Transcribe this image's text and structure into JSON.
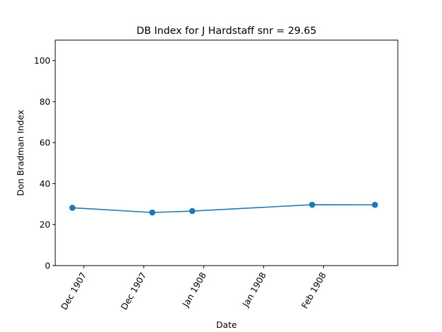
{
  "chart_data": {
    "type": "line",
    "title": "DB Index for J Hardstaff snr = 29.65",
    "xlabel": "Date",
    "ylabel": "Don Bradman Index",
    "ylim": [
      0,
      110
    ],
    "y_ticks": [
      0,
      20,
      40,
      60,
      80,
      100
    ],
    "x_tick_labels": [
      "Dec 1907",
      "Dec 1907",
      "Jan 1908",
      "Jan 1908",
      "Feb 1908"
    ],
    "grid": false,
    "line_color": "#1f77b4",
    "series": [
      {
        "x": [
          "1907-12-13",
          "1907-12-27",
          "1908-01-03",
          "1908-01-24",
          "1908-02-04"
        ],
        "values": [
          28.2,
          25.9,
          26.6,
          29.7,
          29.65
        ]
      }
    ]
  }
}
